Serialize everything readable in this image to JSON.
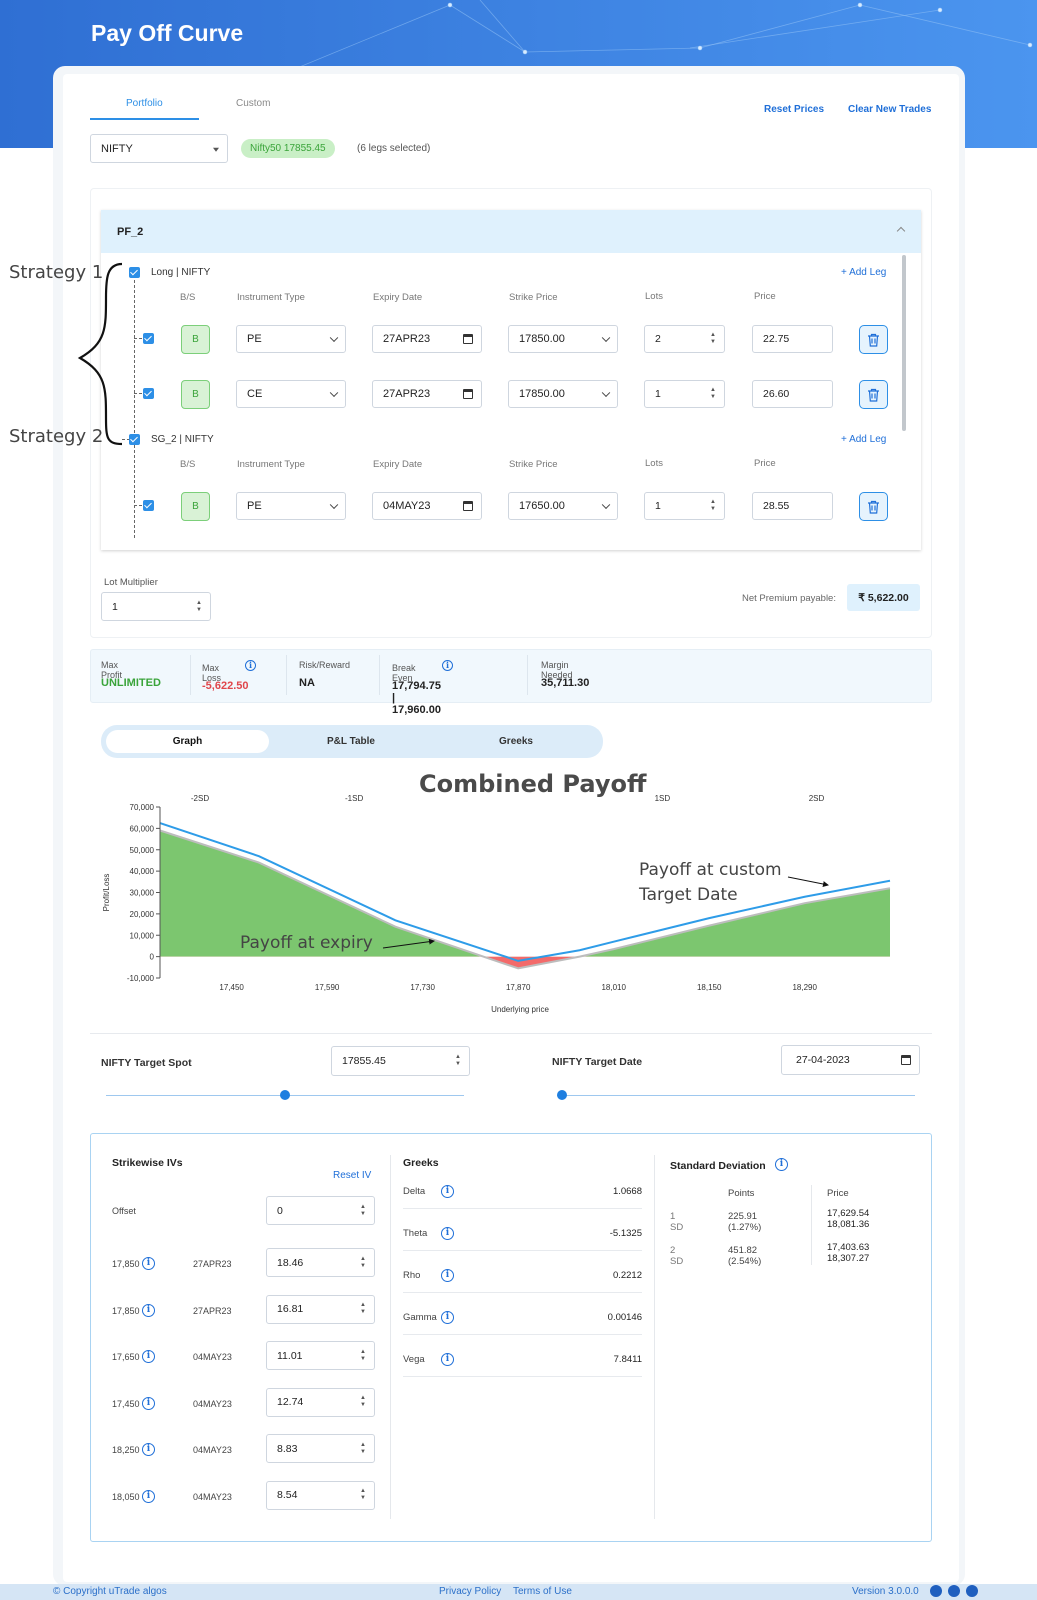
{
  "app": {
    "title": "Pay Off Curve"
  },
  "tabs": {
    "portfolio": "Portfolio",
    "custom": "Custom"
  },
  "actions": {
    "reset_prices": "Reset Prices",
    "clear_new_trades": "Clear New Trades"
  },
  "selector": {
    "index": "NIFTY",
    "spot_pill": "Nifty50 17855.45",
    "legs_selected": "(6 legs selected)"
  },
  "portfolio": {
    "name": "PF_2",
    "strategies": [
      {
        "title": "Long | NIFTY",
        "add_leg": "+ Add Leg"
      },
      {
        "title": "SG_2 | NIFTY",
        "add_leg": "+ Add Leg"
      }
    ],
    "columns": {
      "bs": "B/S",
      "instrument": "Instrument Type",
      "expiry": "Expiry Date",
      "strike": "Strike Price",
      "lots": "Lots",
      "price": "Price"
    },
    "legs": [
      {
        "side": "B",
        "instrument": "PE",
        "expiry": "27APR23",
        "strike": "17850.00",
        "lots": "2",
        "price": "22.75"
      },
      {
        "side": "B",
        "instrument": "CE",
        "expiry": "27APR23",
        "strike": "17850.00",
        "lots": "1",
        "price": "26.60"
      },
      {
        "side": "B",
        "instrument": "PE",
        "expiry": "04MAY23",
        "strike": "17650.00",
        "lots": "1",
        "price": "28.55"
      }
    ]
  },
  "lot_multiplier": {
    "label": "Lot Multiplier",
    "value": "1"
  },
  "net_premium": {
    "label": "Net Premium payable:",
    "value": "₹ 5,622.00"
  },
  "stats": [
    {
      "label": "Max Profit",
      "value": "UNLIMITED",
      "color": "#3aa43a",
      "info": false
    },
    {
      "label": "Max Loss",
      "value": "-5,622.50",
      "color": "#e0464b",
      "info": true
    },
    {
      "label": "Risk/Reward",
      "value": "NA",
      "color": "#222222",
      "info": false
    },
    {
      "label": "Break Even",
      "value": "17,794.75 | 17,960.00",
      "color": "#222222",
      "info": true
    },
    {
      "label": "Margin Needed",
      "value": "35,711.30",
      "color": "#222222",
      "info": false
    }
  ],
  "view_tabs": {
    "graph": "Graph",
    "pnl": "P&L Table",
    "greeks": "Greeks"
  },
  "annotations": {
    "strategy1": "Strategy 1",
    "strategy2": "Strategy 2",
    "combined": "Combined Payoff",
    "expiry": "Payoff at expiry",
    "custom1": "Payoff at custom",
    "custom2": "Target Date"
  },
  "chart_data": {
    "type": "area",
    "xlabel": "Underlying price",
    "ylabel": "Profit/Loss",
    "ylim": [
      -10000,
      70000
    ],
    "xlim": [
      17345,
      18415
    ],
    "y_ticks": [
      -10000,
      0,
      10000,
      20000,
      30000,
      40000,
      50000,
      60000,
      70000
    ],
    "y_tick_labels": [
      "-10,000",
      "0",
      "10,000",
      "20,000",
      "30,000",
      "40,000",
      "50,000",
      "60,000",
      "70,000"
    ],
    "x_ticks": [
      17450,
      17590,
      17730,
      17870,
      18010,
      18150,
      18290
    ],
    "x_tick_labels": [
      "17,450",
      "17,590",
      "17,730",
      "17,870",
      "18,010",
      "18,150",
      "18,290"
    ],
    "sd_markers": [
      {
        "label": "-2SD",
        "x": 17403.63
      },
      {
        "label": "-1SD",
        "x": 17629.54
      },
      {
        "label": "1SD",
        "x": 18081.36
      },
      {
        "label": "2SD",
        "x": 18307.27
      }
    ],
    "series": [
      {
        "name": "Payoff at expiry",
        "x": [
          17345,
          17490,
          17690,
          17870,
          17960,
          18010,
          18150,
          18290,
          18415
        ],
        "y": [
          59000,
          44000,
          14000,
          -5500,
          0,
          3500,
          14500,
          25000,
          32000
        ]
      },
      {
        "name": "Payoff at custom Target Date",
        "x": [
          17345,
          17490,
          17690,
          17870,
          17960,
          18010,
          18150,
          18290,
          18415
        ],
        "y": [
          62500,
          47000,
          17000,
          -2000,
          3000,
          7000,
          18000,
          28000,
          35500
        ]
      }
    ]
  },
  "target": {
    "spot_label": "NIFTY Target Spot",
    "spot_value": "17855.45",
    "spot_fraction": 0.5,
    "date_label": "NIFTY Target Date",
    "date_value": "27-04-2023",
    "date_fraction": 0
  },
  "ivs": {
    "title": "Strikewise IVs",
    "reset": "Reset IV",
    "offset_label": "Offset",
    "offset_value": "0",
    "rows": [
      {
        "strike": "17,850",
        "expiry": "27APR23",
        "iv": "18.46"
      },
      {
        "strike": "17,850",
        "expiry": "27APR23",
        "iv": "16.81"
      },
      {
        "strike": "17,650",
        "expiry": "04MAY23",
        "iv": "11.01"
      },
      {
        "strike": "17,450",
        "expiry": "04MAY23",
        "iv": "12.74"
      },
      {
        "strike": "18,250",
        "expiry": "04MAY23",
        "iv": "8.83"
      },
      {
        "strike": "18,050",
        "expiry": "04MAY23",
        "iv": "8.54"
      }
    ]
  },
  "greeks": {
    "title": "Greeks",
    "rows": [
      {
        "name": "Delta",
        "value": "1.0668"
      },
      {
        "name": "Theta",
        "value": "-5.1325"
      },
      {
        "name": "Rho",
        "value": "0.2212"
      },
      {
        "name": "Gamma",
        "value": "0.00146"
      },
      {
        "name": "Vega",
        "value": "7.8411"
      }
    ]
  },
  "std_dev": {
    "title": "Standard Deviation",
    "points_header": "Points",
    "price_header": "Price",
    "rows": [
      {
        "label": "1 SD",
        "points": "225.91 (1.27%)",
        "price1": "17,629.54",
        "price2": "18,081.36"
      },
      {
        "label": "2 SD",
        "points": "451.82 (2.54%)",
        "price1": "17,403.63",
        "price2": "18,307.27"
      }
    ]
  },
  "footer": {
    "copyright": "© Copyright uTrade algos",
    "privacy": "Privacy Policy",
    "terms": "Terms of Use",
    "version": "Version 3.0.0.0"
  }
}
